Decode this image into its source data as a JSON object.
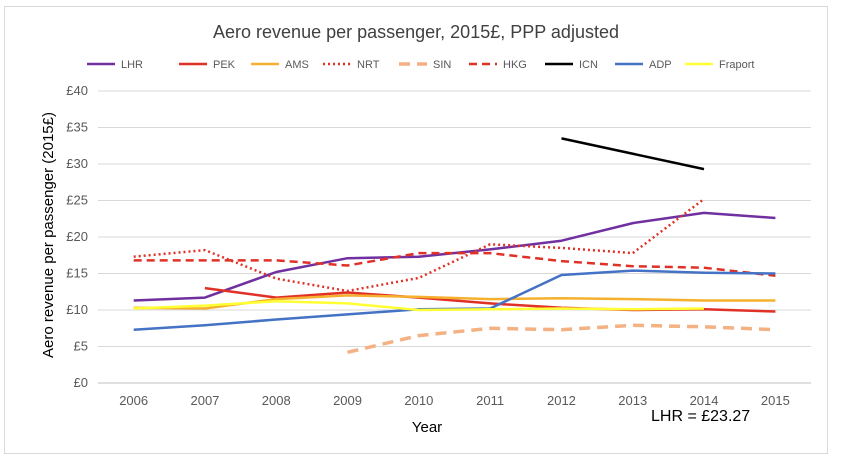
{
  "chart_data": {
    "type": "line",
    "title": "Aero revenue per passenger, 2015£, PPP adjusted",
    "xlabel": "Year",
    "ylabel": "Aero revenue per passenger (2015£)",
    "x": [
      "2006",
      "2007",
      "2008",
      "2009",
      "2010",
      "2011",
      "2012",
      "2013",
      "2014",
      "2015"
    ],
    "ylim": [
      0,
      40
    ],
    "yticks": [
      0,
      5,
      10,
      15,
      20,
      25,
      30,
      35,
      40
    ],
    "ytick_labels": [
      "£0",
      "£5",
      "£10",
      "£15",
      "£20",
      "£25",
      "£30",
      "£35",
      "£40"
    ],
    "grid": true,
    "legend_position": "top",
    "annotation": "LHR = £23.27",
    "series": [
      {
        "name": "LHR",
        "color": "#7030a0",
        "dash": "solid",
        "values": [
          11.3,
          11.7,
          15.2,
          17.1,
          17.3,
          18.3,
          19.5,
          21.9,
          23.3,
          22.6
        ]
      },
      {
        "name": "PEK",
        "color": "#e03127",
        "dash": "solid",
        "values": [
          null,
          13.0,
          11.7,
          12.4,
          11.7,
          10.9,
          10.3,
          10.0,
          10.1,
          9.8
        ]
      },
      {
        "name": "AMS",
        "color": "#f5b02e",
        "dash": "solid",
        "values": [
          10.3,
          10.2,
          11.5,
          12.0,
          11.8,
          11.5,
          11.6,
          11.5,
          11.3,
          11.3
        ]
      },
      {
        "name": "NRT",
        "color": "#e03127",
        "dash": "dot",
        "values": [
          17.3,
          18.2,
          14.3,
          12.6,
          14.4,
          19.0,
          18.5,
          17.8,
          25.2,
          null
        ]
      },
      {
        "name": "SIN",
        "color": "#f4b183",
        "dash": "longdash",
        "values": [
          null,
          null,
          null,
          4.2,
          6.5,
          7.5,
          7.3,
          7.9,
          7.7,
          7.3
        ]
      },
      {
        "name": "HKG",
        "color": "#e03127",
        "dash": "dash",
        "values": [
          16.8,
          16.8,
          16.8,
          16.1,
          17.8,
          17.8,
          16.7,
          16.0,
          15.8,
          14.7
        ]
      },
      {
        "name": "ICN",
        "color": "#000000",
        "dash": "solid",
        "values": [
          null,
          null,
          null,
          null,
          null,
          null,
          33.5,
          null,
          29.3,
          null
        ]
      },
      {
        "name": "ADP",
        "color": "#4472c4",
        "dash": "solid",
        "values": [
          7.3,
          7.9,
          8.7,
          9.4,
          10.1,
          10.2,
          14.8,
          15.4,
          15.1,
          15.0
        ]
      },
      {
        "name": "Fraport",
        "color": "#ffff33",
        "dash": "solid",
        "values": [
          10.2,
          10.6,
          11.2,
          10.9,
          10.0,
          10.1,
          10.2,
          10.1,
          10.2,
          null
        ]
      }
    ]
  }
}
